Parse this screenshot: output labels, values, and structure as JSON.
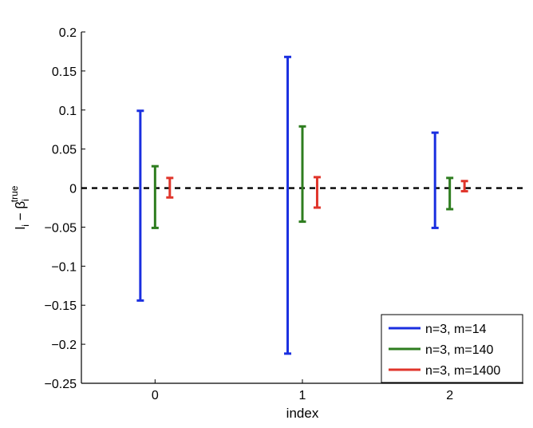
{
  "chart_data": {
    "type": "errorbar",
    "title": "",
    "xlabel": "index",
    "ylabel": "l_i − β_i^true",
    "ylabel_parts": {
      "main": "l",
      "main_sub": "i",
      "minus": " − β",
      "beta_sub": "i",
      "beta_sup": "true"
    },
    "categories": [
      "0",
      "1",
      "2"
    ],
    "x": [
      0,
      1,
      2
    ],
    "xlim": [
      -0.5,
      2.5
    ],
    "ylim": [
      -0.25,
      0.2
    ],
    "yticks": [
      -0.25,
      -0.2,
      -0.15,
      -0.1,
      -0.05,
      0,
      0.05,
      0.1,
      0.15,
      0.2
    ],
    "ytick_labels": [
      "−0.25",
      "−0.2",
      "−0.15",
      "−0.1",
      "−0.05",
      "0",
      "0.05",
      "0.1",
      "0.15",
      "0.2"
    ],
    "reference_line": {
      "y": 0,
      "style": "dashed",
      "color": "#000000"
    },
    "grid": false,
    "legend_position": "bottom-right",
    "series": [
      {
        "name": "n=3, m=14",
        "color": "#1a2fe0",
        "offset": -0.1,
        "lower": [
          -0.144,
          -0.212,
          -0.051
        ],
        "upper": [
          0.099,
          0.168,
          0.071
        ]
      },
      {
        "name": "n=3, m=140",
        "color": "#2e7d1f",
        "offset": 0.0,
        "lower": [
          -0.051,
          -0.043,
          -0.027
        ],
        "upper": [
          0.028,
          0.079,
          0.013
        ]
      },
      {
        "name": "n=3, m=1400",
        "color": "#e0352b",
        "offset": 0.1,
        "lower": [
          -0.012,
          -0.025,
          -0.004
        ],
        "upper": [
          0.013,
          0.014,
          0.009
        ]
      }
    ]
  }
}
